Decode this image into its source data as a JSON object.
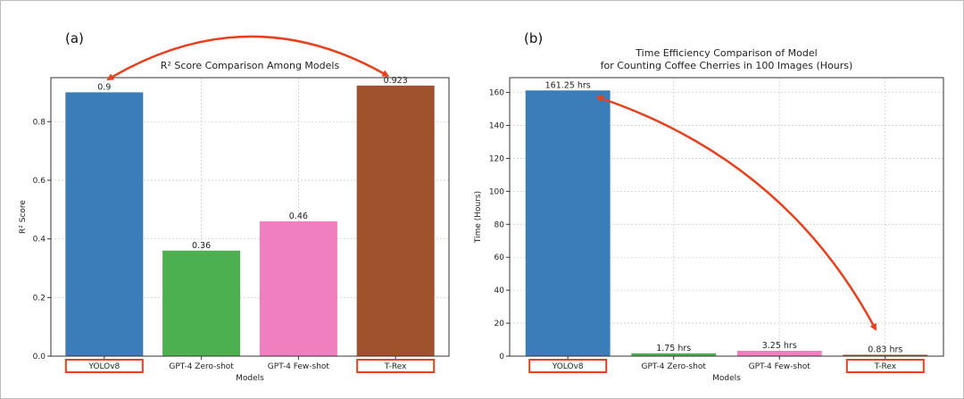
{
  "chart_data": [
    {
      "panel_label": "(a)",
      "type": "bar",
      "title": "R² Score Comparison Among Models",
      "xlabel": "Models",
      "ylabel": "R² Score",
      "categories": [
        "YOLOv8",
        "GPT-4 Zero-shot",
        "GPT-4 Few-shot",
        "T-Rex"
      ],
      "values": [
        0.9,
        0.36,
        0.46,
        0.923
      ],
      "data_labels": [
        "0.9",
        "0.36",
        "0.46",
        "0.923"
      ],
      "colors": [
        "#3a7db8",
        "#4caf50",
        "#f07fc0",
        "#a0522d"
      ],
      "ylim": [
        0,
        0.95
      ],
      "yticks": [
        0.0,
        0.2,
        0.4,
        0.6,
        0.8
      ],
      "ytick_labels": [
        "0.0",
        "0.2",
        "0.4",
        "0.6",
        "0.8"
      ],
      "grid": true,
      "highlighted_categories": [
        "YOLOv8",
        "T-Rex"
      ]
    },
    {
      "panel_label": "(b)",
      "type": "bar",
      "title": "Time Efficiency Comparison of Model\nfor Counting Coffee Cherries in 100 Images (Hours)",
      "title_lines": [
        "Time Efficiency Comparison of Model",
        "for Counting Coffee Cherries in 100 Images (Hours)"
      ],
      "xlabel": "Models",
      "ylabel": "Time (Hours)",
      "categories": [
        "YOLOv8",
        "GPT-4 Zero-shot",
        "GPT-4 Few-shot",
        "T-Rex"
      ],
      "values": [
        161.25,
        1.75,
        3.25,
        0.83
      ],
      "data_labels": [
        "161.25 hrs",
        "1.75 hrs",
        "3.25 hrs",
        "0.83 hrs"
      ],
      "colors": [
        "#3a7db8",
        "#4caf50",
        "#f07fc0",
        "#a0522d"
      ],
      "ylim": [
        0,
        169
      ],
      "yticks": [
        0,
        20,
        40,
        60,
        80,
        100,
        120,
        140,
        160
      ],
      "ytick_labels": [
        "0",
        "20",
        "40",
        "60",
        "80",
        "100",
        "120",
        "140",
        "160"
      ],
      "grid": true,
      "highlighted_categories": [
        "YOLOv8",
        "T-Rex"
      ]
    }
  ],
  "annotation_color": "#e8401c"
}
